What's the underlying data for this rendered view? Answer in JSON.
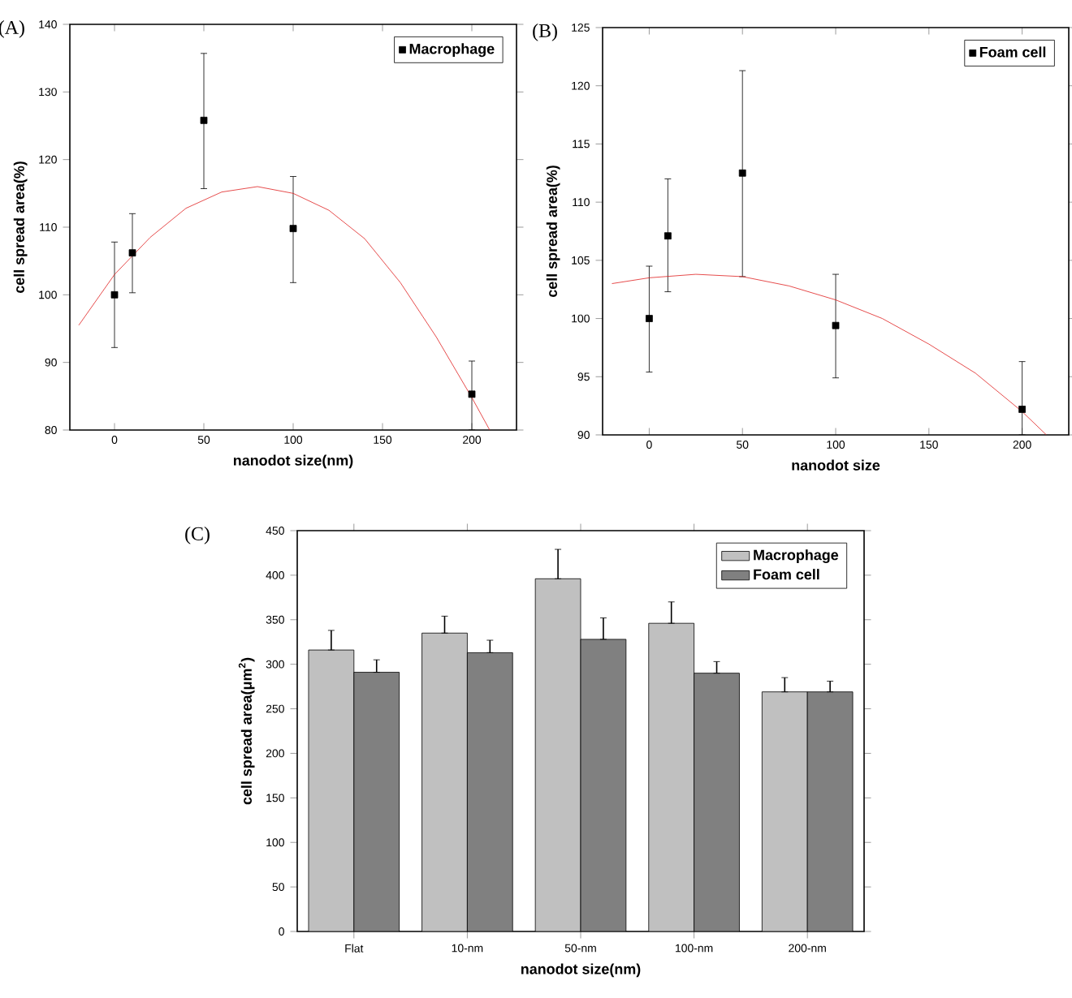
{
  "chart_data": [
    {
      "type": "scatter",
      "title": "(A)",
      "xlabel": "nanodot size(nm)",
      "ylabel": "cell spread area(%)",
      "xlim": [
        -25,
        225
      ],
      "ylim": [
        80,
        140
      ],
      "xticks": [
        0,
        50,
        100,
        150,
        200
      ],
      "yticks": [
        80,
        90,
        100,
        110,
        120,
        130,
        140
      ],
      "marker": "square",
      "legend": "top right",
      "x": [
        0,
        10,
        50,
        100,
        200
      ],
      "series": [
        {
          "name": "Macrophage",
          "color": "#000000",
          "values": [
            100,
            106.2,
            125.8,
            109.8,
            85.3
          ],
          "errors": [
            [
              92.2,
              107.8
            ],
            [
              100.3,
              112
            ],
            [
              115.7,
              135.7
            ],
            [
              101.8,
              117.5
            ],
            [
              80,
              90.2
            ]
          ]
        },
        {
          "type": "line",
          "marker": "none",
          "color": "#e02020",
          "x": [
            -20,
            0,
            20,
            40,
            60,
            80,
            100,
            120,
            140,
            160,
            180,
            200,
            210
          ],
          "values": [
            95.5,
            103,
            108.5,
            112.8,
            115.2,
            116,
            115,
            112.5,
            108.3,
            101.8,
            93.8,
            84.8,
            80
          ]
        }
      ]
    },
    {
      "type": "scatter",
      "title": "(B)",
      "xlabel": "nanodot size",
      "ylabel": "cell spread area(%)",
      "xlim": [
        -25,
        225
      ],
      "ylim": [
        90,
        125
      ],
      "xticks": [
        0,
        50,
        100,
        150,
        200
      ],
      "yticks": [
        90,
        95,
        100,
        105,
        110,
        115,
        120,
        125
      ],
      "marker": "square",
      "legend": "top right",
      "x": [
        0,
        10,
        50,
        100,
        200
      ],
      "series": [
        {
          "name": "Foam cell",
          "color": "#000000",
          "values": [
            100,
            107.1,
            112.5,
            99.4,
            92.2
          ],
          "errors": [
            [
              95.4,
              104.5
            ],
            [
              102.3,
              112
            ],
            [
              103.6,
              121.3
            ],
            [
              94.9,
              103.8
            ],
            [
              90,
              96.3
            ]
          ]
        },
        {
          "type": "line",
          "marker": "none",
          "color": "#e02020",
          "x": [
            -20,
            0,
            25,
            50,
            75,
            100,
            125,
            150,
            175,
            200,
            213
          ],
          "values": [
            103,
            103.5,
            103.8,
            103.6,
            102.8,
            101.6,
            100,
            97.8,
            95.3,
            92,
            90
          ]
        }
      ]
    },
    {
      "type": "bar",
      "title": "(C)",
      "xlabel": "nanodot size(nm)",
      "ylabel": "cell spread area(μm$^{2}$)",
      "ylim": [
        0,
        450
      ],
      "yticks": [
        0,
        50,
        100,
        150,
        200,
        250,
        300,
        350,
        400,
        450
      ],
      "legend": "top right",
      "categories": [
        "Flat",
        "10-nm",
        "50-nm",
        "100-nm",
        "200-nm"
      ],
      "series": [
        {
          "name": "Macrophage",
          "color": "#c0c0c0",
          "values": [
            316,
            335,
            396,
            346,
            269
          ],
          "errors": [
            [
              316,
              338
            ],
            [
              335,
              354
            ],
            [
              396,
              429
            ],
            [
              346,
              370
            ],
            [
              269,
              285
            ]
          ]
        },
        {
          "name": "Foam cell",
          "color": "#808080",
          "values": [
            291,
            313,
            328,
            290,
            269
          ],
          "errors": [
            [
              291,
              305
            ],
            [
              313,
              327
            ],
            [
              328,
              352
            ],
            [
              290,
              303
            ],
            [
              269,
              281
            ]
          ]
        }
      ]
    }
  ]
}
